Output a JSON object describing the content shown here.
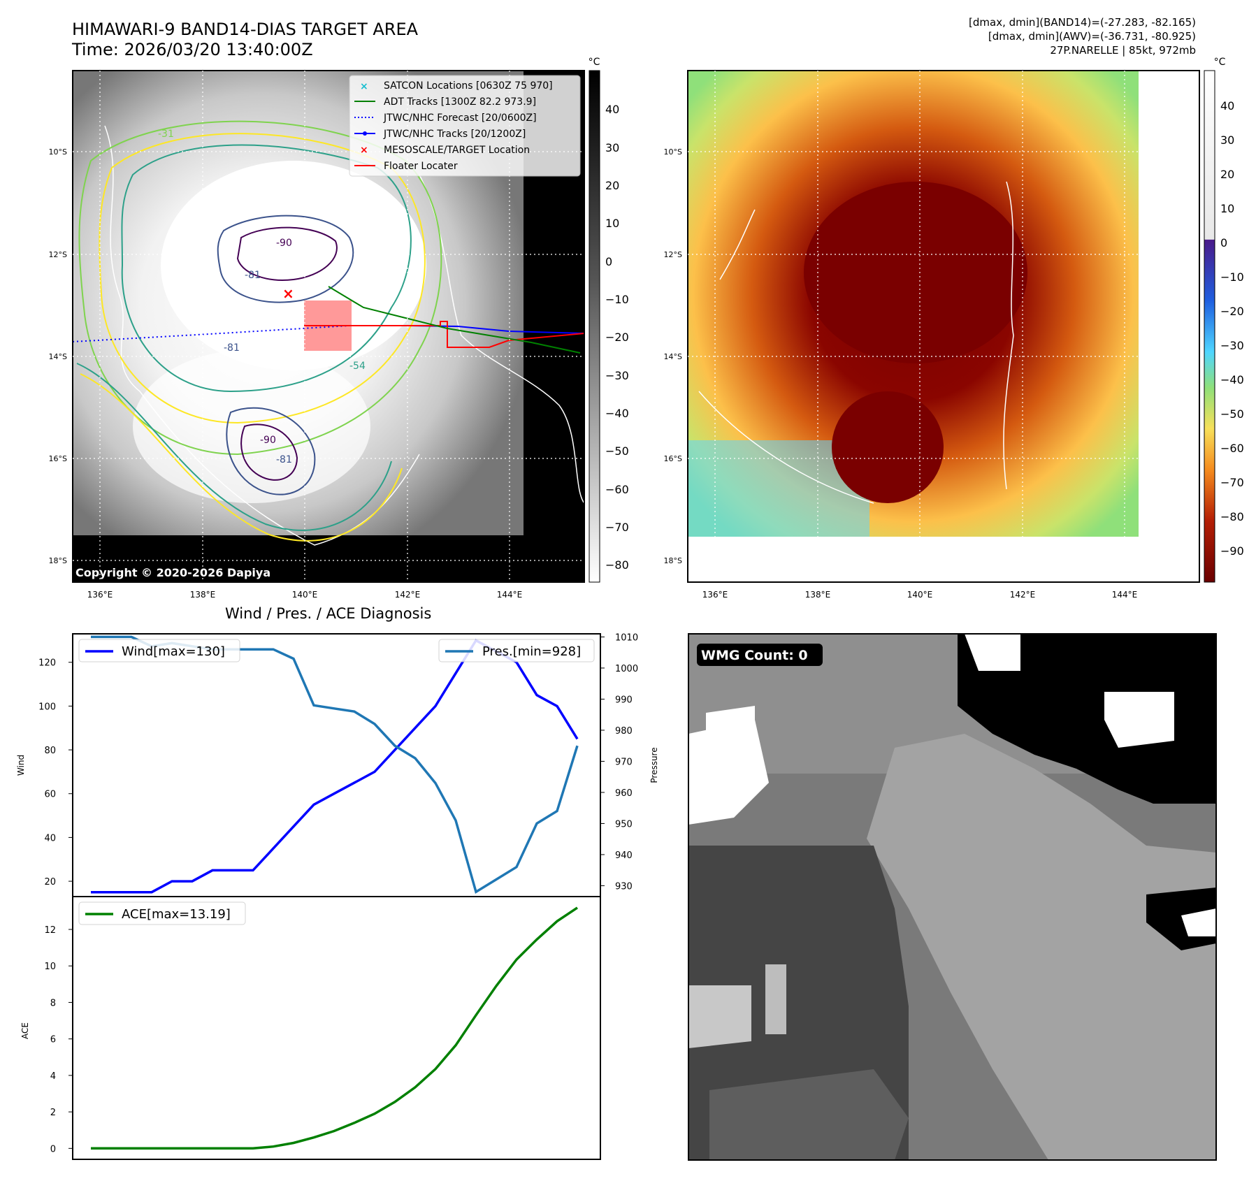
{
  "header": {
    "title_line1": "HIMAWARI-9 BAND14-DIAS TARGET AREA",
    "title_line2": "Time: 2026/03/20 13:40:00Z",
    "info_line1": "[dmax, dmin](BAND14)=(-27.283, -82.165)",
    "info_line2": "[dmax, dmin](AWV)=(-36.731, -80.925)",
    "info_line3": "27P.NARELLE | 85kt, 972mb"
  },
  "map_axes": {
    "lat_ticks": [
      "10°S",
      "12°S",
      "14°S",
      "16°S",
      "18°S"
    ],
    "lon_ticks": [
      "136°E",
      "138°E",
      "140°E",
      "142°E",
      "144°E"
    ]
  },
  "ir_panel": {
    "colorbar_unit": "°C",
    "colorbar_ticks": [
      "40",
      "30",
      "20",
      "10",
      "0",
      "−10",
      "−20",
      "−30",
      "−40",
      "−50",
      "−60",
      "−70",
      "−80"
    ],
    "contour_labels": [
      "-90",
      "-81",
      "-90",
      "-81",
      "-81",
      "-54",
      "-31"
    ],
    "copyright": "Copyright © 2020-2026 Dapiya",
    "legend": [
      {
        "label": "SATCON Locations [0630Z 75 970]",
        "color": "#17becf",
        "marker": "x"
      },
      {
        "label": "ADT Tracks [1300Z 82.2 973.9]",
        "color": "#008000",
        "marker": "line"
      },
      {
        "label": "JTWC/NHC Forecast [20/0600Z]",
        "color": "#0000ff",
        "marker": "dotted"
      },
      {
        "label": "JTWC/NHC Tracks [20/1200Z]",
        "color": "#0000ff",
        "marker": "line-dot"
      },
      {
        "label": "MESOSCALE/TARGET Location",
        "color": "#ff0000",
        "marker": "x"
      },
      {
        "label": "Floater Locater",
        "color": "#ff0000",
        "marker": "line"
      }
    ]
  },
  "wv_panel": {
    "colorbar_unit": "°C",
    "colorbar_ticks": [
      "40",
      "30",
      "20",
      "10",
      "0",
      "−10",
      "−20",
      "−30",
      "−40",
      "−50",
      "−60",
      "−70",
      "−80",
      "−90"
    ]
  },
  "diagnosis": {
    "title": "Wind / Pres. / ACE Diagnosis",
    "wind_legend": "Wind[max=130]",
    "pres_legend": "Pres.[min=928]",
    "ace_legend": "ACE[max=13.19]",
    "wind_ylabel": "Wind",
    "pres_ylabel": "Pressure",
    "ace_ylabel": "ACE"
  },
  "wmg_panel": {
    "badge": "WMG Count: 0"
  },
  "colors": {
    "wind": "#0000ff",
    "pressure": "#1f77b4",
    "ace": "#008000"
  },
  "chart_data": [
    {
      "type": "line",
      "title": "Wind / Pres. / ACE Diagnosis",
      "x": [
        0,
        1,
        2,
        3,
        4,
        5,
        6,
        7,
        8,
        9,
        10,
        11,
        12,
        13,
        14,
        15,
        16,
        17,
        18,
        19,
        20,
        21,
        22,
        23,
        24
      ],
      "series": [
        {
          "name": "Wind[max=130]",
          "axis": "left",
          "values": [
            15,
            15,
            15,
            15,
            20,
            20,
            25,
            25,
            25,
            35,
            45,
            55,
            60,
            65,
            70,
            80,
            90,
            100,
            115,
            130,
            125,
            120,
            105,
            100,
            85
          ]
        }
      ],
      "ylabel": "Wind",
      "ylim": [
        13,
        133
      ],
      "yticks": [
        20,
        40,
        60,
        80,
        100,
        120
      ]
    },
    {
      "type": "line",
      "x": [
        0,
        1,
        2,
        3,
        4,
        5,
        6,
        7,
        8,
        9,
        10,
        11,
        12,
        13,
        14,
        15,
        16,
        17,
        18,
        19,
        20,
        21,
        22,
        23,
        24
      ],
      "series": [
        {
          "name": "Pres.[min=928]",
          "axis": "right",
          "values": [
            1010,
            1010,
            1010,
            1007,
            1008,
            1007,
            1006,
            1006,
            1006,
            1006,
            1003,
            988,
            987,
            986,
            982,
            975,
            971,
            963,
            951,
            928,
            932,
            936,
            950,
            954,
            975
          ]
        }
      ],
      "ylabel": "Pressure",
      "ylim": [
        926.5,
        1011
      ],
      "yticks": [
        930,
        940,
        950,
        960,
        970,
        980,
        990,
        1000,
        1010
      ]
    },
    {
      "type": "line",
      "x": [
        0,
        1,
        2,
        3,
        4,
        5,
        6,
        7,
        8,
        9,
        10,
        11,
        12,
        13,
        14,
        15,
        16,
        17,
        18,
        19,
        20,
        21,
        22,
        23,
        24
      ],
      "series": [
        {
          "name": "ACE[max=13.19]",
          "values": [
            0,
            0,
            0,
            0,
            0,
            0,
            0,
            0,
            0,
            0.1,
            0.3,
            0.6,
            0.95,
            1.4,
            1.9,
            2.55,
            3.35,
            4.35,
            5.65,
            7.3,
            8.9,
            10.35,
            11.45,
            12.45,
            13.19
          ]
        }
      ],
      "ylabel": "ACE",
      "ylim": [
        -0.6,
        13.8
      ],
      "yticks": [
        0,
        2,
        4,
        6,
        8,
        10,
        12
      ]
    }
  ]
}
